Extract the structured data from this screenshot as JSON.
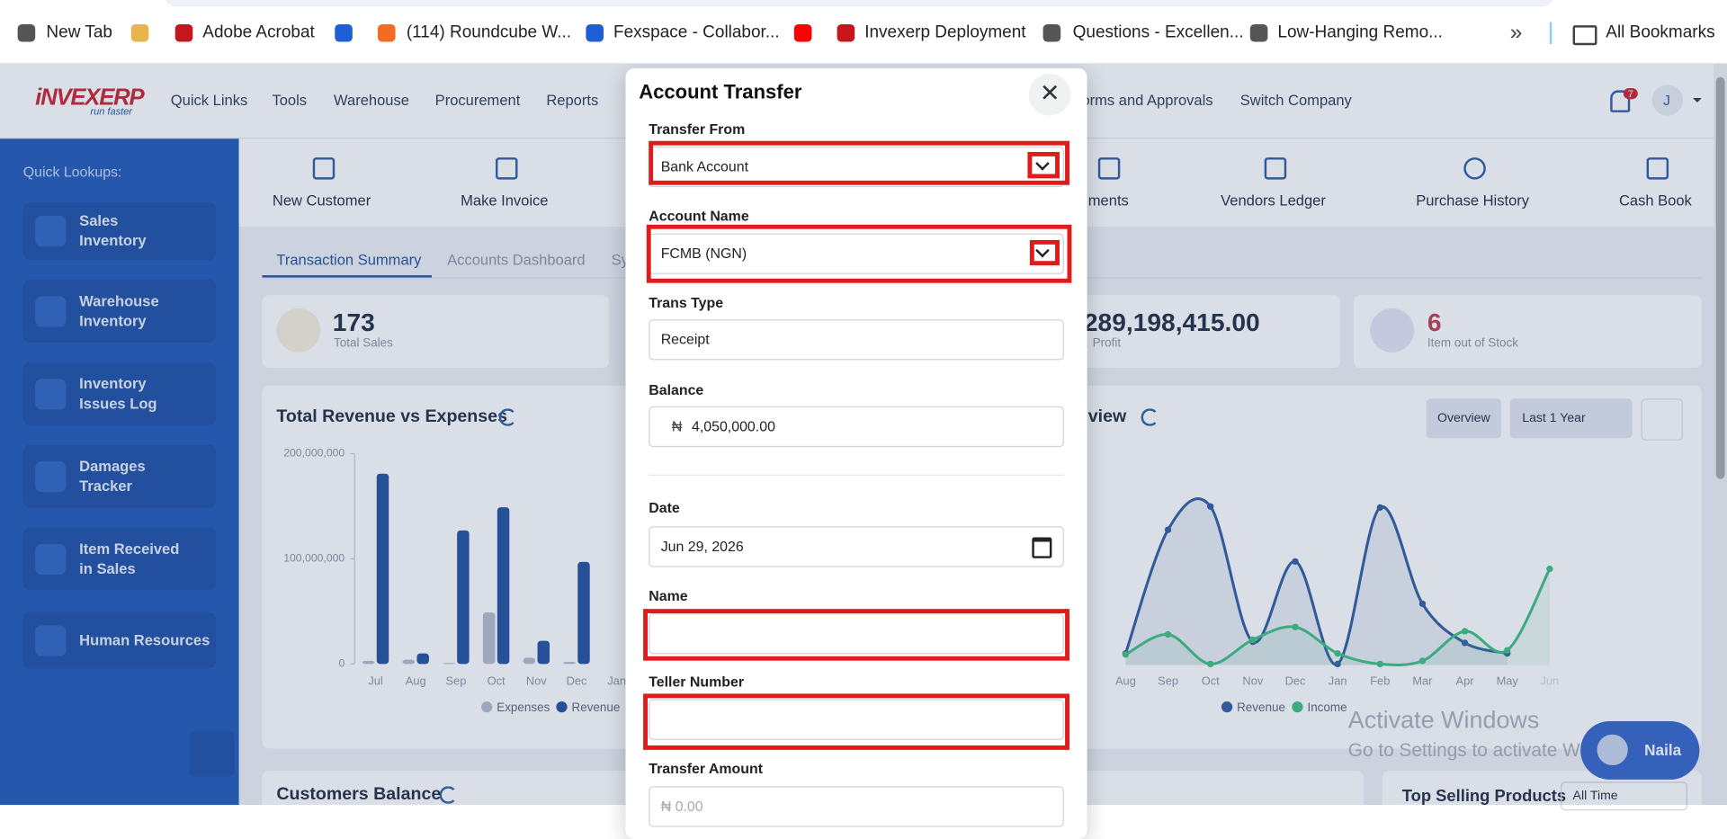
{
  "bookmarks": [
    "New Tab",
    "Adobe Acrobat",
    "(114) Roundcube W...",
    "Fexspace - Collabor...",
    "Invexerp Deployment",
    "Questions - Excellen...",
    "Low-Hanging Remo...",
    "All Bookmarks"
  ],
  "header": {
    "logo": "iNVEXERP",
    "tagline": "run faster",
    "nav": [
      "Quick Links",
      "Tools",
      "Warehouse",
      "Procurement",
      "Reports",
      "orms and Approvals",
      "Switch Company"
    ],
    "notifications": "7",
    "avatar": "J"
  },
  "sidebar": {
    "heading": "Quick Lookups:",
    "items": [
      "Sales Inventory",
      "Warehouse Inventory",
      "Inventory Issues Log",
      "Damages Tracker",
      "Item Received in Sales",
      "Human Resources"
    ]
  },
  "quick_actions": [
    "New Customer",
    "Make Invoice",
    "ments",
    "Vendors Ledger",
    "Purchase History",
    "Cash Book"
  ],
  "tabs": [
    "Transaction Summary",
    "Accounts Dashboard",
    "Sy"
  ],
  "stats": [
    {
      "value": "173",
      "label": "Total Sales"
    },
    {
      "value": "289,198,415.00",
      "label": "Profit"
    },
    {
      "value": "6",
      "label": "Item out of Stock"
    }
  ],
  "chart_data": [
    {
      "type": "bar",
      "title": "Total Revenue vs Expenses",
      "categories": [
        "Jul",
        "Aug",
        "Sep",
        "Oct",
        "Nov",
        "Dec",
        "Jan"
      ],
      "series": [
        {
          "name": "Expenses",
          "color": "#b4bccb",
          "values": [
            3000000,
            4000000,
            1000000,
            49000000,
            6000000,
            2000000,
            0
          ]
        },
        {
          "name": "Revenue",
          "color": "#1f4f9f",
          "values": [
            181000000,
            10000000,
            127000000,
            149000000,
            22000000,
            97000000,
            0
          ]
        }
      ],
      "ylim": [
        0,
        200000000
      ],
      "yticks": [
        0,
        {
          "value": 100000000,
          "label": "100,000,000"
        },
        {
          "value": 200000000,
          "label": "200,000,000"
        }
      ]
    },
    {
      "type": "line",
      "title": "view",
      "controls": [
        "Overview",
        "Last 1 Year"
      ],
      "categories": [
        "Aug",
        "Sep",
        "Oct",
        "Nov",
        "Dec",
        "Jan",
        "Feb",
        "Mar",
        "Apr",
        "May",
        "Jun"
      ],
      "series": [
        {
          "name": "Revenue",
          "color": "#2c5aa0",
          "values": [
            11000000,
            128000000,
            150000000,
            22000000,
            98000000,
            1000000,
            149000000,
            58000000,
            21000000,
            11000000,
            null
          ]
        },
        {
          "name": "Income",
          "color": "#3cbf7f",
          "values": [
            10000000,
            29000000,
            1000000,
            24000000,
            36000000,
            11000000,
            1000000,
            4000000,
            32000000,
            14000000,
            91000000
          ]
        }
      ],
      "ylim": [
        0,
        200000000
      ]
    }
  ],
  "bottom": {
    "customers_balance": "Customers Balance",
    "top_selling": "Top Selling Products",
    "filter": "All Time"
  },
  "watermark": [
    "Activate Windows",
    "Go to Settings to activate Windows."
  ],
  "chat": "Naila",
  "modal": {
    "title": "Account Transfer",
    "fields": [
      {
        "label": "Transfer From",
        "value": "Bank Account"
      },
      {
        "label": "Account Name",
        "value": "FCMB (NGN)"
      },
      {
        "label": "Trans Type",
        "value": "Receipt"
      },
      {
        "label": "Balance",
        "currency": "₦",
        "value": "4,050,000.00"
      },
      {
        "label": "Date",
        "value": "Jun 29, 2026"
      },
      {
        "label": "Name"
      },
      {
        "label": "Teller Number"
      },
      {
        "label": "Transfer Amount",
        "placeholder": "₦ 0.00"
      }
    ]
  }
}
